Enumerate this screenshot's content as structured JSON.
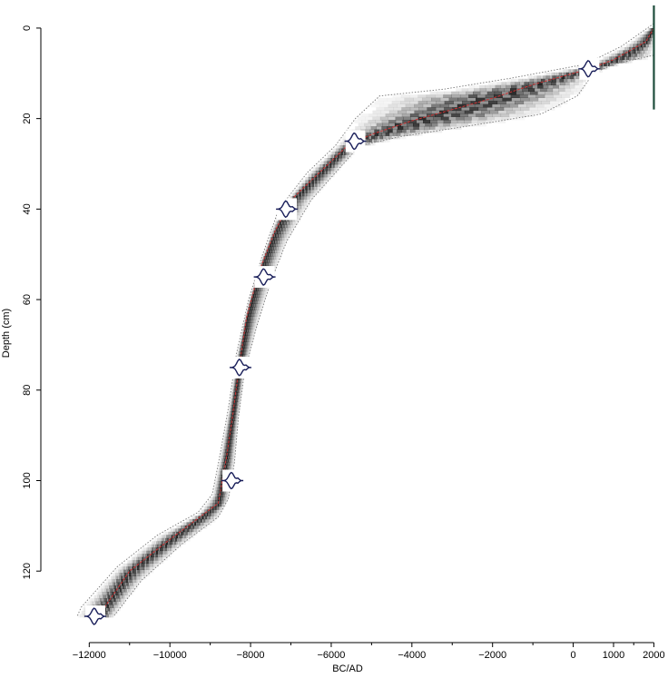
{
  "chart_data": {
    "type": "line",
    "title": "",
    "xlabel": "BC/AD",
    "ylabel": "Depth (cm)",
    "xlim": [
      -13200,
      2350
    ],
    "ylim": [
      -5,
      135
    ],
    "y_reversed": true,
    "x_ticks": [
      -12000,
      -10000,
      -8000,
      -6000,
      -4000,
      -2000,
      0,
      1000,
      2000
    ],
    "x_tick_labels": [
      "−12000",
      "−10000",
      "−8000",
      "−6000",
      "−4000",
      "−2000",
      "0",
      "1000",
      "2000"
    ],
    "x_minor_ticks": [
      -11000,
      -9000,
      -7000,
      -5000,
      -3000,
      -1000,
      1500
    ],
    "y_ticks": [
      0,
      20,
      40,
      60,
      80,
      100,
      120
    ],
    "y_tick_labels": [
      "0",
      "20",
      "40",
      "60",
      "80",
      "100",
      "120"
    ],
    "colors": {
      "mean_line": "#cc3333",
      "envelope": "#777777",
      "dates": "#1a1f5a",
      "surface": "#1e4d3c",
      "density": "#000000"
    },
    "series": [
      {
        "role": "mean",
        "x": [
          2000,
          1800,
          1400,
          1000,
          400,
          0,
          -1000,
          -2000,
          -3000,
          -4000,
          -5000,
          -5600,
          -6300,
          -7000,
          -7400,
          -7800,
          -8100,
          -8300,
          -8450,
          -8600,
          -8800,
          -9100,
          -10000,
          -11000,
          -11700
        ],
        "y": [
          0,
          3,
          5,
          7,
          9,
          10,
          12.5,
          15.5,
          18,
          20.5,
          23.5,
          26,
          32,
          38,
          45,
          54,
          64,
          76,
          86,
          95,
          105,
          107,
          113,
          120,
          129
        ]
      },
      {
        "role": "lower-bound",
        "x": [
          2000,
          1200,
          300,
          -1500,
          -3200,
          -4800,
          -5400,
          -5900,
          -6600,
          -7300,
          -7700,
          -8050,
          -8350,
          -8550,
          -8750,
          -8950,
          -9300,
          -10300,
          -11300,
          -12200,
          -12300
        ],
        "y": [
          -1,
          4,
          8,
          11,
          13.5,
          15,
          20,
          26,
          32,
          40,
          50,
          60,
          72,
          84,
          94,
          103,
          107,
          112,
          119,
          128,
          130
        ]
      },
      {
        "role": "upper-bound",
        "x": [
          2000,
          1000,
          500,
          100,
          -800,
          -2500,
          -4300,
          -5300,
          -5800,
          -6500,
          -7100,
          -7500,
          -7850,
          -8150,
          -8300,
          -8400,
          -8550,
          -8800,
          -9700,
          -10700,
          -11400
        ],
        "y": [
          6,
          8,
          10,
          15,
          19,
          21.5,
          24,
          26,
          31,
          38,
          47,
          56,
          66,
          76,
          86,
          96,
          104,
          108,
          114,
          122,
          130
        ]
      }
    ],
    "dates": [
      {
        "x": 400,
        "y": 9
      },
      {
        "x": -5400,
        "y": 25
      },
      {
        "x": -7100,
        "y": 40
      },
      {
        "x": -7650,
        "y": 55
      },
      {
        "x": -8250,
        "y": 75
      },
      {
        "x": -8450,
        "y": 100
      },
      {
        "x": -11850,
        "y": 130
      }
    ],
    "surface_marker": {
      "x": 2000,
      "y_from": -5,
      "y_to": 18
    }
  }
}
